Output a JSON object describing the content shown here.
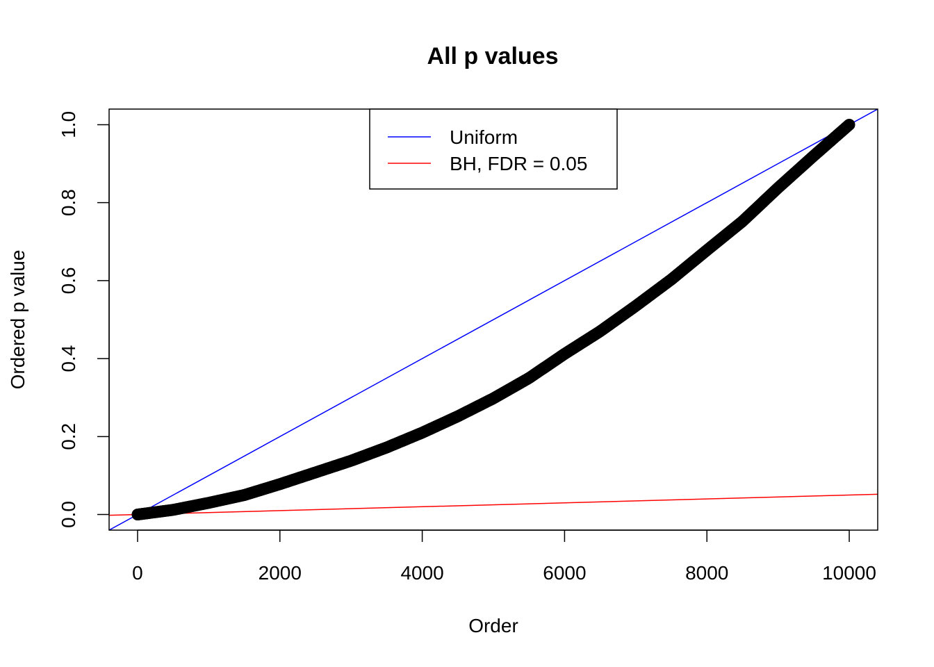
{
  "chart_data": {
    "type": "line",
    "title": "All p values",
    "xlabel": "Order",
    "ylabel": "Ordered p value",
    "xlim": [
      -400,
      10400
    ],
    "ylim": [
      -0.04,
      1.04
    ],
    "xticks": [
      0,
      2000,
      4000,
      6000,
      8000,
      10000
    ],
    "xtick_labels": [
      "0",
      "2000",
      "4000",
      "6000",
      "8000",
      "10000"
    ],
    "yticks": [
      0.0,
      0.2,
      0.4,
      0.6,
      0.8,
      1.0
    ],
    "ytick_labels": [
      "0.0",
      "0.2",
      "0.4",
      "0.6",
      "0.8",
      "1.0"
    ],
    "grid": false,
    "legend": {
      "position": "top-center",
      "entries": [
        {
          "label": "Uniform",
          "color": "#0000ff"
        },
        {
          "label": "BH, FDR = 0.05",
          "color": "#ff0000"
        }
      ]
    },
    "series": [
      {
        "kind": "points",
        "color": "#000000",
        "x": [
          0,
          500,
          1000,
          1500,
          2000,
          2500,
          3000,
          3500,
          4000,
          4500,
          5000,
          5500,
          6000,
          6500,
          7000,
          7500,
          8000,
          8500,
          9000,
          9500,
          10000
        ],
        "y": [
          0.0,
          0.012,
          0.03,
          0.05,
          0.078,
          0.108,
          0.138,
          0.172,
          0.21,
          0.252,
          0.298,
          0.35,
          0.412,
          0.47,
          0.535,
          0.603,
          0.678,
          0.752,
          0.838,
          0.92,
          1.0
        ]
      },
      {
        "label": "Uniform",
        "kind": "abline",
        "color": "#0000ff",
        "intercept": 0,
        "slope": 0.0001
      },
      {
        "label": "BH, FDR = 0.05",
        "kind": "abline",
        "color": "#ff0000",
        "intercept": 0,
        "slope": 5e-06
      }
    ]
  }
}
